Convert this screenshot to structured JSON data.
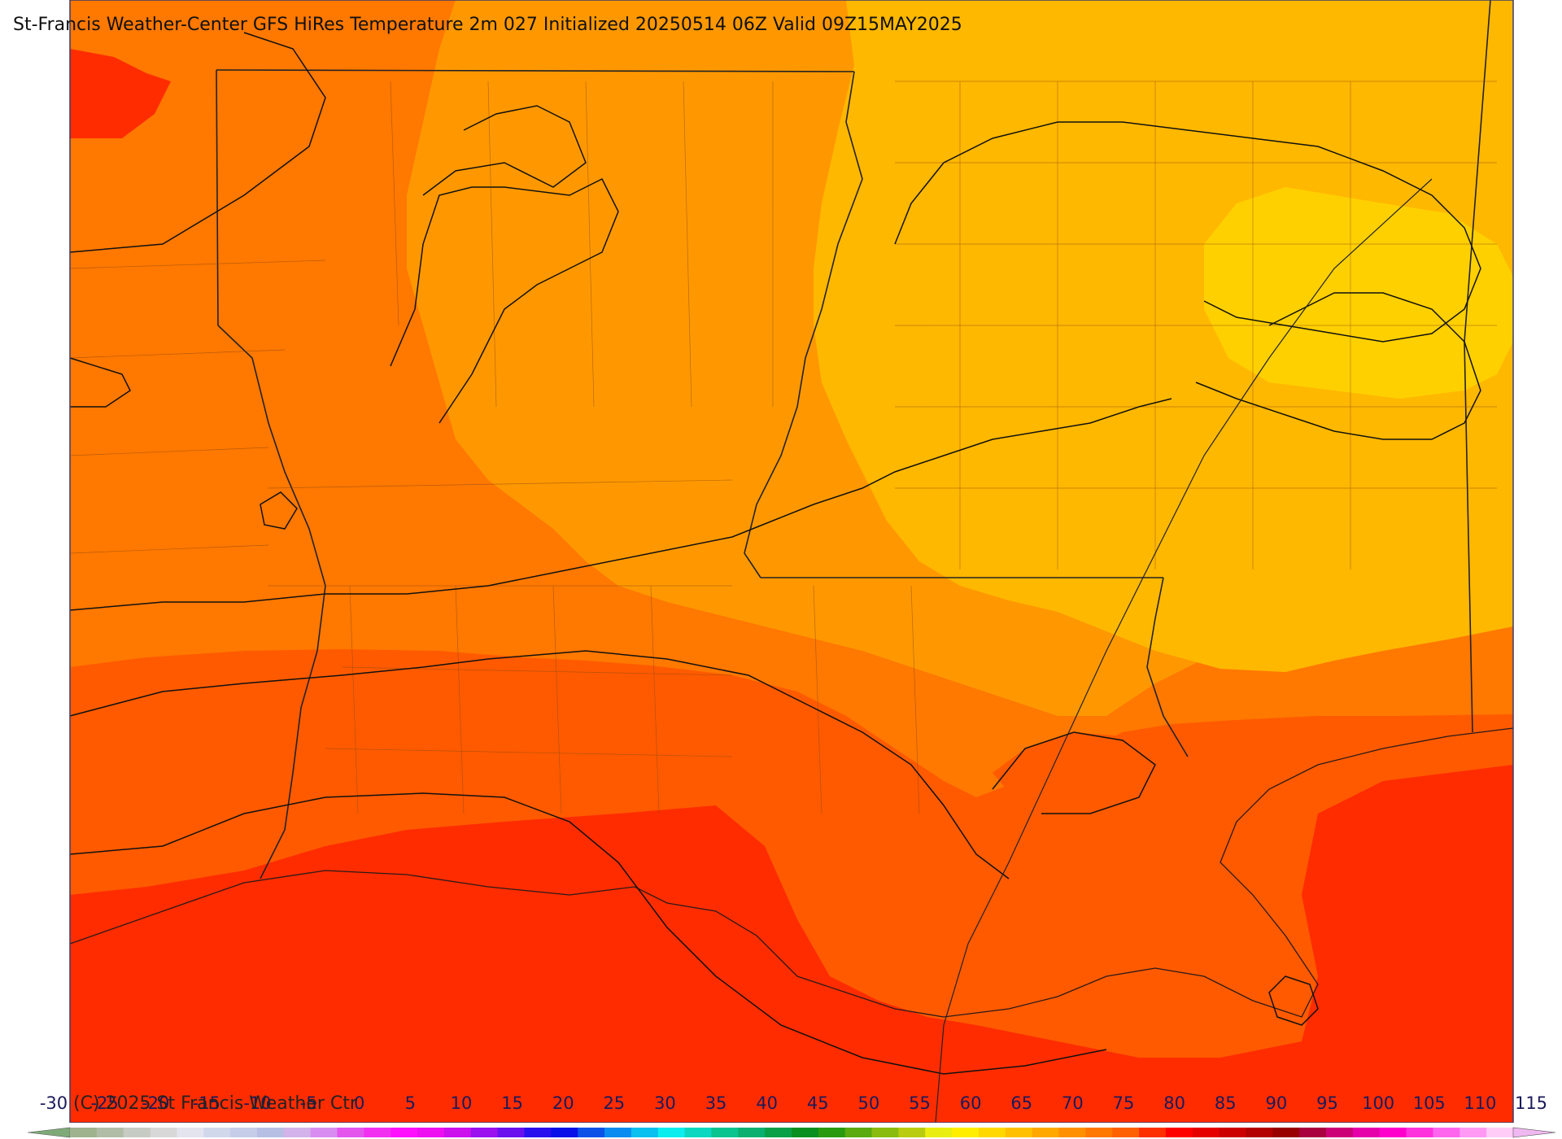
{
  "title": "St-Francis Weather-Center GFS HiRes Temperature 2m  027 Initialized 20250514 06Z Valid 09Z15MAY2025",
  "copyright": "(C) 2025 St Francis Weather Ctr",
  "colorbar": {
    "labels": [
      "-30",
      "-25",
      "-20",
      "-15",
      "-10",
      "-5",
      "0",
      "5",
      "10",
      "15",
      "20",
      "25",
      "30",
      "35",
      "40",
      "45",
      "50",
      "55",
      "60",
      "65",
      "70",
      "75",
      "80",
      "85",
      "90",
      "95",
      "100",
      "105",
      "110",
      "115"
    ],
    "colors": [
      "#9fb38f",
      "#b2bda8",
      "#c6cbc4",
      "#d8d8d8",
      "#e4e4ef",
      "#d2d8ec",
      "#c6cde8",
      "#b7c0e4",
      "#d3b3ea",
      "#d98cf0",
      "#e455ee",
      "#f230f2",
      "#ff10ff",
      "#ee10f0",
      "#cc10ee",
      "#9a10ee",
      "#6a10ee",
      "#2a10ee",
      "#0a10e8",
      "#0a52e8",
      "#0a8cf0",
      "#0ac0f0",
      "#0aeef0",
      "#0ad8c0",
      "#0ac490",
      "#0ab070",
      "#0aa048",
      "#0a9020",
      "#2a9a10",
      "#5aaa10",
      "#8abc10",
      "#bacc10",
      "#eaee10",
      "#ffee00",
      "#ffd800",
      "#ffc000",
      "#ffa800",
      "#ff9000",
      "#ff7800",
      "#ff6000",
      "#ff3000",
      "#ff0000",
      "#e60000",
      "#cc0000",
      "#b30000",
      "#990000",
      "#aa0040",
      "#cc0077",
      "#e600aa",
      "#ff00cc",
      "#ff33dd",
      "#ff66ee",
      "#ff99f4",
      "#ffccf8"
    ],
    "end_colors": [
      "#7faa77",
      "#f0b8f0"
    ]
  },
  "temperature_fill_colors": {
    "band_60": "#ffd000",
    "band_65": "#ffb800",
    "band_70": "#ff9800",
    "band_75": "#ff7800",
    "band_80": "#ff5a00",
    "band_85": "#ff2c00"
  }
}
